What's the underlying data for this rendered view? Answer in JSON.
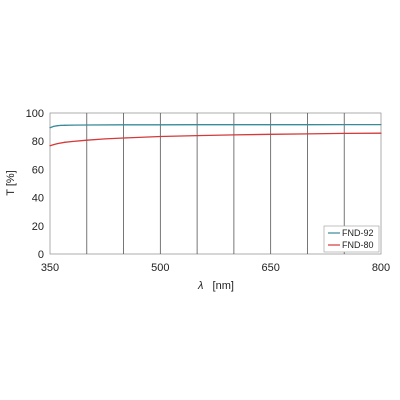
{
  "chart_data": {
    "type": "line",
    "xlabel_symbol": "λ",
    "xlabel_unit": "[nm]",
    "ylabel": "T [%]",
    "xlim": [
      350,
      800
    ],
    "ylim": [
      0,
      100
    ],
    "x_ticks": [
      350,
      500,
      650,
      800
    ],
    "x_gridlines": [
      350,
      400,
      450,
      500,
      550,
      600,
      650,
      700,
      750,
      800
    ],
    "y_ticks": [
      0,
      20,
      40,
      60,
      80,
      100
    ],
    "grid": "vertical",
    "legend_placement": "lower-right",
    "series": [
      {
        "name": "FND-92",
        "color": "#3a8a9a",
        "x": [
          350,
          355,
          360,
          365,
          370,
          380,
          400,
          450,
          500,
          550,
          600,
          650,
          700,
          750,
          800
        ],
        "values": [
          89.6,
          90.5,
          91.0,
          91.2,
          91.3,
          91.4,
          91.5,
          91.6,
          91.6,
          91.7,
          91.7,
          91.7,
          91.7,
          91.8,
          91.8
        ]
      },
      {
        "name": "FND-80",
        "color": "#d43a3a",
        "x": [
          350,
          355,
          360,
          370,
          380,
          400,
          425,
          450,
          500,
          550,
          600,
          650,
          700,
          750,
          800
        ],
        "values": [
          76.8,
          77.6,
          78.3,
          79.2,
          79.8,
          80.7,
          81.6,
          82.3,
          83.3,
          84.0,
          84.5,
          84.9,
          85.2,
          85.5,
          85.7
        ]
      }
    ]
  }
}
